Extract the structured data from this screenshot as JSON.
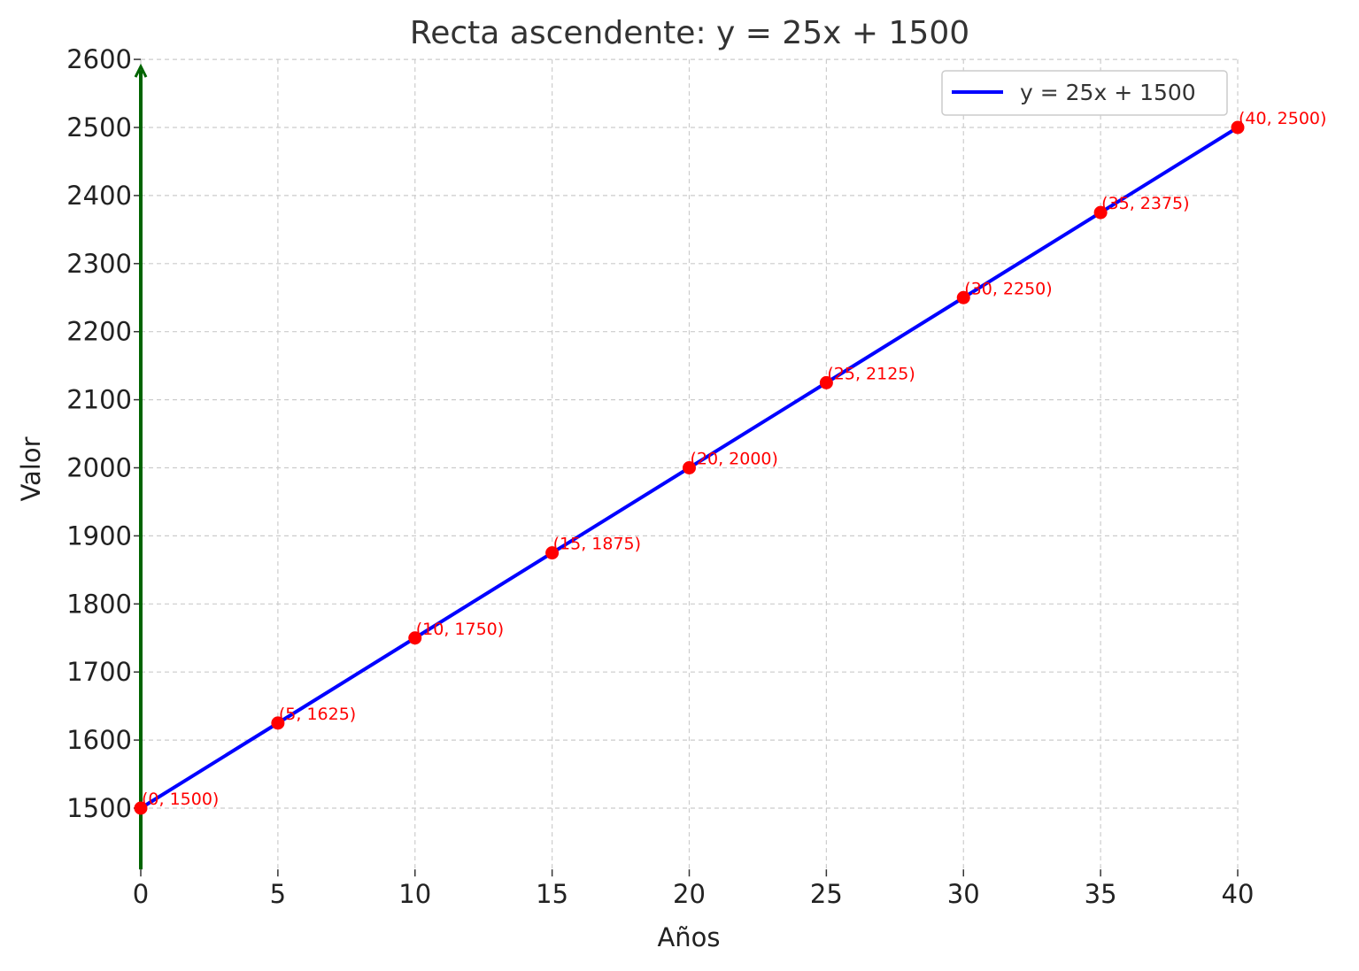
{
  "chart_data": {
    "type": "line",
    "title": "Recta ascendente: y = 25x + 1500",
    "xlabel": "Años",
    "ylabel": "Valor",
    "xlim": [
      0,
      40
    ],
    "ylim": [
      1410,
      2600
    ],
    "xticks": [
      0,
      5,
      10,
      15,
      20,
      25,
      30,
      35,
      40
    ],
    "yticks": [
      1500,
      1600,
      1700,
      1800,
      1900,
      2000,
      2100,
      2200,
      2300,
      2400,
      2500,
      2600
    ],
    "grid": true,
    "legend_position": "top-right",
    "series": [
      {
        "name": "y = 25x + 1500",
        "color": "#0000ff",
        "x": [
          0,
          5,
          10,
          15,
          20,
          25,
          30,
          35,
          40
        ],
        "y": [
          1500,
          1625,
          1750,
          1875,
          2000,
          2125,
          2250,
          2375,
          2500
        ]
      }
    ],
    "points": {
      "color": "#ff0000",
      "labels": [
        "(0, 1500)",
        "(5, 1625)",
        "(10, 1750)",
        "(15, 1875)",
        "(20, 2000)",
        "(25, 2125)",
        "(30, 2250)",
        "(35, 2375)",
        "(40, 2500)"
      ]
    },
    "y_axis_arrow_color": "#006400"
  }
}
